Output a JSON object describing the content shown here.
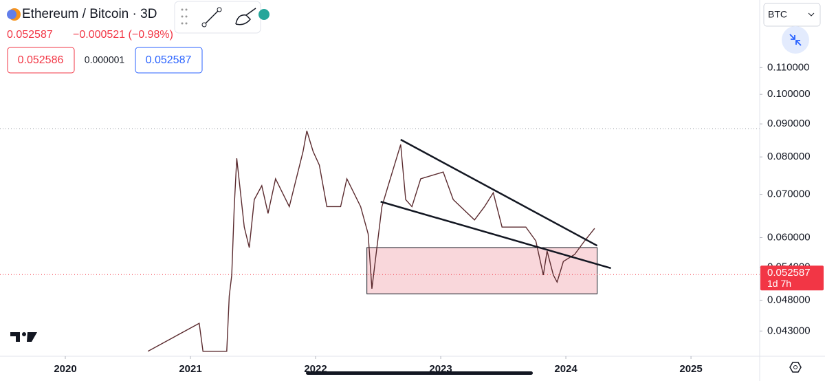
{
  "header": {
    "symbol": "Ethereum / Bitcoin · 3D",
    "price": "0.052587",
    "change": "−0.000521 (−0.98%)",
    "bid": "0.052586",
    "spread": "0.000001",
    "ask": "0.052587",
    "currency": "BTC"
  },
  "chart_data": {
    "type": "line",
    "log_scale": true,
    "xlim": [
      2019.478,
      2025.549
    ],
    "xticks": [
      2020,
      2021,
      2022,
      2023,
      2024,
      2025
    ],
    "ylim": [
      0.0393,
      0.14
    ],
    "yticks": [
      {
        "value": 0.043,
        "label": "0.043000"
      },
      {
        "value": 0.048,
        "label": "0.048000"
      },
      {
        "value": 0.054,
        "label": "0.054000"
      },
      {
        "value": 0.06,
        "label": "0.060000"
      },
      {
        "value": 0.07,
        "label": "0.070000"
      },
      {
        "value": 0.08,
        "label": "0.080000"
      },
      {
        "value": 0.09,
        "label": "0.090000"
      },
      {
        "value": 0.1,
        "label": "0.100000"
      },
      {
        "value": 0.11,
        "label": "0.110000"
      }
    ],
    "series": [
      {
        "color": "#5a2a2e",
        "x": [
          2020.66,
          2021.07,
          2021.1,
          2021.29,
          2021.31,
          2021.33,
          2021.35,
          2021.37,
          2021.43,
          2021.47,
          2021.51,
          2021.57,
          2021.62,
          2021.68,
          2021.79,
          2021.9,
          2021.93,
          2021.98,
          2022.03,
          2022.09,
          2022.2,
          2022.25,
          2022.36,
          2022.42,
          2022.45,
          2022.49,
          2022.53,
          2022.58,
          2022.68,
          2022.72,
          2022.77,
          2022.84,
          2023.02,
          2023.1,
          2023.27,
          2023.35,
          2023.42,
          2023.49,
          2023.68,
          2023.76,
          2023.82,
          2023.85,
          2023.9,
          2023.93,
          2023.98,
          2024.07,
          2024.15,
          2024.23
        ],
        "values": [
          0.04,
          0.0442,
          0.04,
          0.04,
          0.0487,
          0.0525,
          0.067,
          0.0796,
          0.0623,
          0.0579,
          0.0687,
          0.0722,
          0.0654,
          0.074,
          0.067,
          0.0816,
          0.0878,
          0.0816,
          0.0777,
          0.067,
          0.067,
          0.074,
          0.067,
          0.0608,
          0.05,
          0.0579,
          0.067,
          0.0722,
          0.0836,
          0.0687,
          0.067,
          0.074,
          0.0758,
          0.0687,
          0.0639,
          0.067,
          0.0704,
          0.0623,
          0.0623,
          0.0593,
          0.0525,
          0.0572,
          0.0525,
          0.0512,
          0.0551,
          0.0565,
          0.0593,
          0.062
        ]
      }
    ],
    "trendlines": [
      {
        "x": [
          2022.68,
          2024.25
        ],
        "values": [
          0.0851,
          0.0583
        ],
        "color": "#131722"
      },
      {
        "x": [
          2022.52,
          2024.36
        ],
        "values": [
          0.0682,
          0.0538
        ],
        "color": "#131722"
      }
    ],
    "box": {
      "x": [
        2022.41,
        2024.25
      ],
      "values": [
        0.0491,
        0.0579
      ],
      "color": "#f7cdd2"
    },
    "hline": {
      "value": 0.0885,
      "color": "#9598a1"
    },
    "last_price": 0.052587,
    "last_price_color": "#f23645",
    "countdown": "1d 7h"
  }
}
